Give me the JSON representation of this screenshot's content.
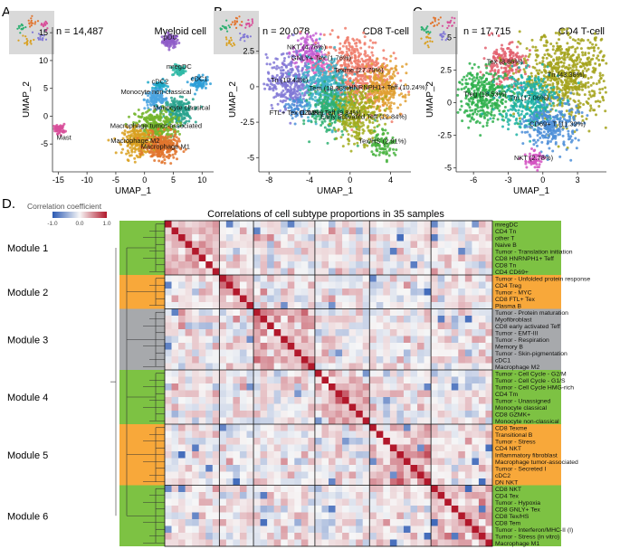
{
  "chart_data": [
    {
      "type": "scatter",
      "panel_letter": "A.",
      "title": "Myeloid cell",
      "n_label": "n = 14,487",
      "xlabel": "UMAP_1",
      "ylabel": "UMAP_2",
      "xlim": [
        -16,
        12
      ],
      "ylim": [
        -10,
        16
      ],
      "xticks": [
        -15,
        -10,
        -5,
        0,
        5,
        10
      ],
      "yticks": [
        -5,
        0,
        5,
        10,
        15
      ],
      "clusters": [
        {
          "label": "pDC",
          "x": 4.5,
          "y": 13.5,
          "color": "#8e5cc8",
          "spread": 0.7,
          "n": 80
        },
        {
          "label": "mregDC",
          "x": 6,
          "y": 8.2,
          "color": "#2fb8a6",
          "spread": 0.6,
          "n": 60
        },
        {
          "label": "cDC2",
          "x": 2.7,
          "y": 5.5,
          "color": "#1fa8c8",
          "spread": 0.6,
          "n": 60
        },
        {
          "label": "cDC1",
          "x": 9.5,
          "y": 6,
          "color": "#2e9fd8",
          "spread": 0.7,
          "n": 70
        },
        {
          "label": "Monocyte non-classical",
          "x": 2,
          "y": 3,
          "color": "#4ba5e0",
          "spread": 1.0,
          "n": 120
        },
        {
          "label": "Monocyte classical",
          "x": 5.8,
          "y": 0.8,
          "color": "#29a38e",
          "spread": 1.3,
          "n": 200
        },
        {
          "label": "Macrophage tumor-associated",
          "x": 2,
          "y": -1.8,
          "color": "#74b52b",
          "spread": 1.8,
          "n": 300
        },
        {
          "label": "Mast",
          "x": -14.8,
          "y": -2.3,
          "color": "#d84f9a",
          "spread": 0.5,
          "n": 60
        },
        {
          "label": "Macrophage M2",
          "x": -1,
          "y": -4.5,
          "color": "#d9a020",
          "spread": 1.4,
          "n": 240
        },
        {
          "label": "Macrophage M1",
          "x": 3,
          "y": -5.5,
          "color": "#e2742d",
          "spread": 1.4,
          "n": 260
        }
      ]
    },
    {
      "type": "scatter",
      "panel_letter": "B.",
      "title": "CD8 T-cell",
      "n_label": "n = 20,078",
      "xlabel": "UMAP_1",
      "ylabel": "UMAP_2",
      "xlim": [
        -9,
        6
      ],
      "ylim": [
        -6,
        4.2
      ],
      "xticks": [
        -8,
        -4,
        0,
        4
      ],
      "yticks": [
        -5,
        -2.5,
        0,
        2.5
      ],
      "clusters": [
        {
          "label": "NKT (4.76%)",
          "x": -4.3,
          "y": 2.5,
          "color": "#c35ed3",
          "spread": 0.7,
          "n": 120
        },
        {
          "label": "GNLY+ Tex (1.76%)",
          "x": -3.2,
          "y": 1.5,
          "color": "#e45dc0",
          "spread": 0.6,
          "n": 80
        },
        {
          "label": "Texme (27.79%)",
          "x": 0.5,
          "y": 1.0,
          "color": "#f07c6b",
          "spread": 1.6,
          "n": 520
        },
        {
          "label": "Tn (10.43%)",
          "x": -6,
          "y": 0.3,
          "color": "#8178d6",
          "spread": 1.1,
          "n": 280
        },
        {
          "label": "Tem (18.38%)",
          "x": -2.5,
          "y": 0.0,
          "color": "#3fb1c8",
          "spread": 1.2,
          "n": 380
        },
        {
          "label": "HNRNPH1+ Teff (10.24%)",
          "x": 3.2,
          "y": -0.2,
          "color": "#e0a033",
          "spread": 1.0,
          "n": 260
        },
        {
          "label": "FTL+ Tex (1.03%)",
          "x": -5.3,
          "y": -1.6,
          "color": "#4b8fd8",
          "spread": 0.5,
          "n": 60
        },
        {
          "label": "GZMK+ Teff (9.84%)",
          "x": -1.8,
          "y": -1.6,
          "color": "#2fb072",
          "spread": 1.0,
          "n": 260
        },
        {
          "label": "Early activated Teff (12.84%)",
          "x": 0.8,
          "y": -2.0,
          "color": "#a2ad1d",
          "spread": 1.1,
          "n": 300
        },
        {
          "label": "Tex/HS (2.91%)",
          "x": 3.2,
          "y": -4.0,
          "color": "#48b33f",
          "spread": 0.6,
          "n": 90
        }
      ]
    },
    {
      "type": "scatter",
      "panel_letter": "C.",
      "title": "CD4 T-cell",
      "n_label": "n = 17,715",
      "xlabel": "UMAP_1",
      "ylabel": "UMAP_2",
      "xlim": [
        -7.5,
        5.5
      ],
      "ylim": [
        -5.3,
        5.8
      ],
      "xticks": [
        -6,
        -3,
        0,
        3
      ],
      "yticks": [
        -5,
        -2.5,
        0,
        2.5,
        5
      ],
      "clusters": [
        {
          "label": "Tex (8.86%)",
          "x": -3.3,
          "y": 3,
          "color": "#e3606e",
          "spread": 0.9,
          "n": 200
        },
        {
          "label": "Tn (43.38%)",
          "x": 2,
          "y": 2,
          "color": "#a3a21a",
          "spread": 1.9,
          "n": 700
        },
        {
          "label": "Treg (18.53%)",
          "x": -5,
          "y": 0.5,
          "color": "#2fb04c",
          "spread": 1.2,
          "n": 360
        },
        {
          "label": "Tm (17.06%)",
          "x": -1.2,
          "y": 0.2,
          "color": "#1fb1a5",
          "spread": 1.3,
          "n": 360
        },
        {
          "label": "CD69+ T (11.39%)",
          "x": 0.8,
          "y": -1.8,
          "color": "#4c8ed8",
          "spread": 1.1,
          "n": 260
        },
        {
          "label": "NKT (2.78%)",
          "x": -0.8,
          "y": -4.4,
          "color": "#d455c2",
          "spread": 0.4,
          "n": 60
        }
      ]
    },
    {
      "type": "heatmap",
      "panel_letter": "D.",
      "title": "Correlations of cell subtype proportions in 35 samples",
      "legend_title": "Correlation coefficient",
      "legend_ticks": [
        "-1.0",
        "0.0",
        "1.0"
      ],
      "legend_range": [
        -1,
        1
      ],
      "modules": [
        {
          "name": "Module 1",
          "color": "#7dc243",
          "rows": [
            "mregDC",
            "CD4 Tn",
            "other T",
            "Naive B",
            "Tumor - Translation initiation",
            "CD8 HNRNPH1+ Teff",
            "CD8 Tn",
            "CD4 CD69+"
          ]
        },
        {
          "name": "Module 2",
          "color": "#f8a83a",
          "rows": [
            "Tumor - Unfolded protein response",
            "CD4 Treg",
            "Tumor - MYC",
            "CD8 FTL+ Tex",
            "Plasma B"
          ]
        },
        {
          "name": "Module 3",
          "color": "#a7a9ac",
          "rows": [
            "Tumor - Protein maturation",
            "Myofibroblast",
            "CD8 early activated Teff",
            "Tumor - EMT-III",
            "Tumor - Respiration",
            "Memory B",
            "Tumor - Skin-pigmentation",
            "cDC1",
            "Macrophage M2"
          ]
        },
        {
          "name": "Module 4",
          "color": "#7dc243",
          "rows": [
            "Tumor - Cell Cycle - G2/M",
            "Tumor - Cell Cycle - G1/S",
            "Tumor - Cell Cycle HMG-rich",
            "CD4 Tm",
            "Tumor - Unassigned",
            "Monocyte classical",
            "CD8 GZMK+",
            "Monocyte non-classical"
          ]
        },
        {
          "name": "Module 5",
          "color": "#f8a83a",
          "rows": [
            "CD8 Texme",
            "Transitional B",
            "Tumor - Stress",
            "CD4 NKT",
            "Inflammatory fibroblast",
            "Macrophage tumor-associated",
            "Tumor - Secreted I",
            "cDC2",
            "DN NKT"
          ]
        },
        {
          "name": "Module 6",
          "color": "#7dc243",
          "rows": [
            "CD8 NKT",
            "CD4 Tex",
            "Tumor - Hypoxia",
            "CD8 GNLY+ Tex",
            "CD8 Tex/HS",
            "CD8 Tem",
            "Tumor - Interferon/MHC-II (I)",
            "Tumor - Stress (in vitro)",
            "Macrophage M1"
          ]
        }
      ]
    }
  ]
}
